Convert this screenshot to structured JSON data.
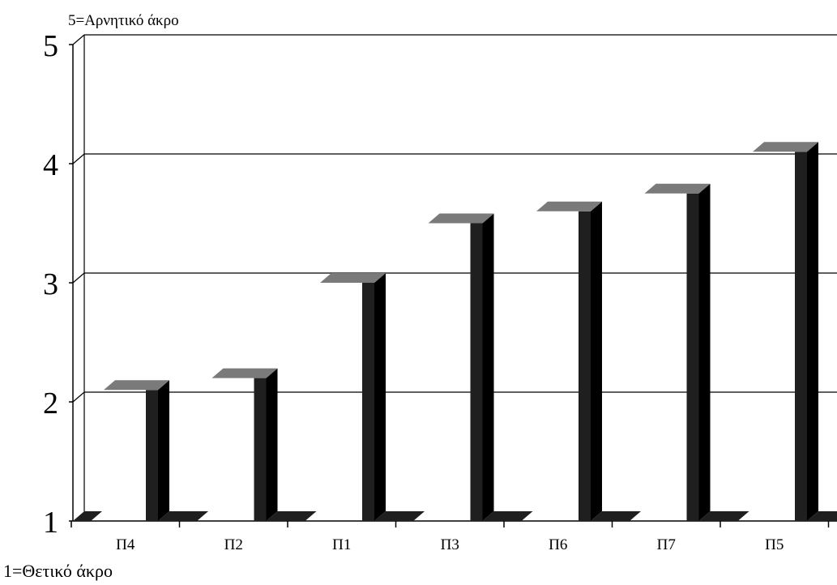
{
  "chart_data": {
    "type": "bar",
    "categories": [
      "Π4",
      "Π2",
      "Π1",
      "Π3",
      "Π6",
      "Π7",
      "Π5"
    ],
    "values": [
      2.1,
      2.2,
      3.0,
      3.5,
      3.6,
      3.75,
      4.1
    ],
    "ylim": [
      1,
      5
    ],
    "yticks": [
      "1",
      "2",
      "3",
      "4",
      "5"
    ],
    "top_note": "5=Αρνητικό άκρο",
    "bottom_note": "1=Θετικό άκρο",
    "grid": true,
    "colors": {
      "bar_front": "#1f1f1f",
      "bar_top": "#7a7a7a",
      "grid": "#000000",
      "background": "#ffffff"
    }
  }
}
